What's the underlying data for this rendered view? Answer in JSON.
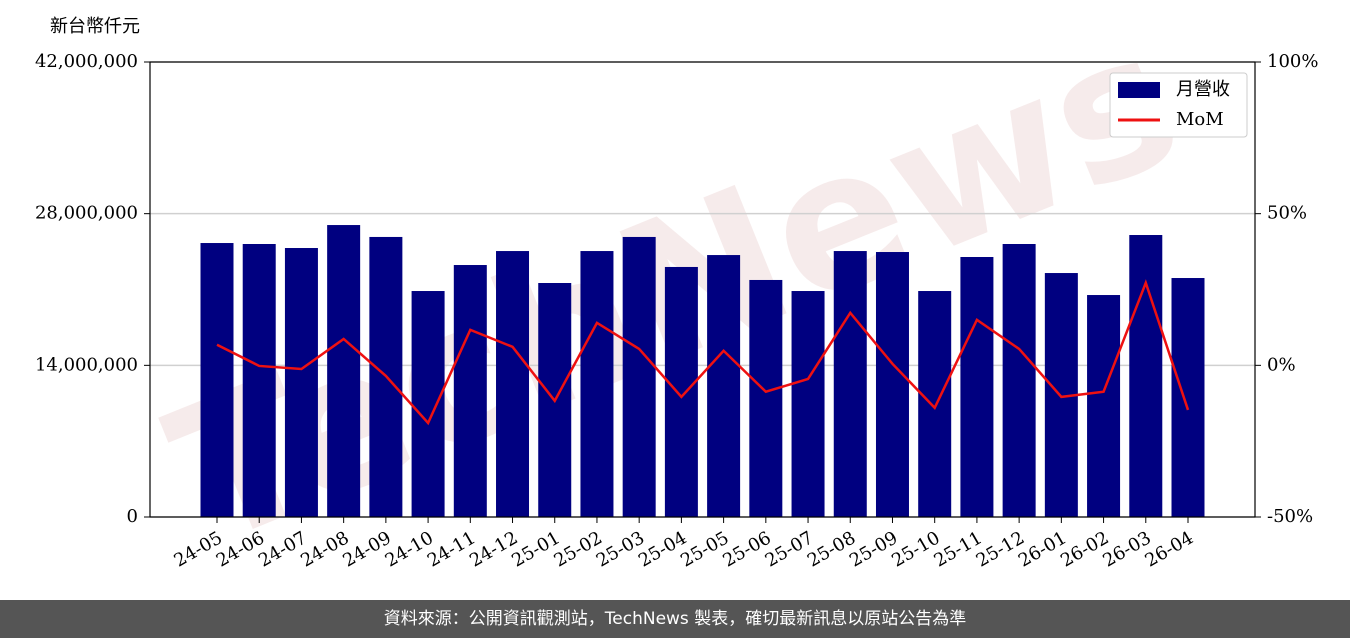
{
  "chart_data": {
    "type": "bar-line",
    "y_axis_label": "新台幣仟元",
    "watermark": "TechNews",
    "categories": [
      "24-05",
      "24-06",
      "24-07",
      "24-08",
      "24-09",
      "24-10",
      "24-11",
      "24-12",
      "25-01",
      "25-02",
      "25-03",
      "25-04",
      "25-05",
      "25-06",
      "25-07",
      "25-08",
      "25-09",
      "25-10",
      "25-11",
      "25-12",
      "26-01",
      "26-02",
      "26-03",
      "26-04"
    ],
    "series": [
      {
        "name": "月營收",
        "type": "bar",
        "color": "#000080",
        "values": [
          25290000,
          25200000,
          24830000,
          26950000,
          25850000,
          20860000,
          23260000,
          24550000,
          21600000,
          24550000,
          25850000,
          23080000,
          24180000,
          21880000,
          20860000,
          24550000,
          24460000,
          20860000,
          24000000,
          25200000,
          22520000,
          20490000,
          26030000,
          22060000
        ]
      },
      {
        "name": "MoM",
        "type": "line",
        "axis": "y2",
        "color": "#ee1111",
        "values": [
          6.8,
          -0.2,
          -1.2,
          8.7,
          -3.5,
          -19.0,
          11.7,
          6.1,
          -11.7,
          14.0,
          5.4,
          -10.4,
          4.8,
          -8.7,
          -4.5,
          17.3,
          0.5,
          -14.0,
          15.0,
          5.4,
          -10.4,
          -8.7,
          27.2,
          -14.7
        ]
      }
    ],
    "ylim": [
      0,
      42000000
    ],
    "yticks": [
      0,
      {
        "value": 14000000,
        "label": "14,000,000"
      },
      {
        "value": 28000000,
        "label": "28,000,000"
      },
      {
        "value": 42000000,
        "label": "42,000,000"
      }
    ],
    "y2lim": [
      -50,
      100
    ],
    "y2ticks": [
      {
        "value": -50,
        "label": "-50%"
      },
      {
        "value": 0,
        "label": "0%"
      },
      {
        "value": 50,
        "label": "50%"
      },
      {
        "value": 100,
        "label": "100%"
      }
    ],
    "grid": true,
    "legend": "upper right"
  },
  "footer": "資料來源：公開資訊觀測站，TechNews 製表，確切最新訊息以原站公告為準"
}
